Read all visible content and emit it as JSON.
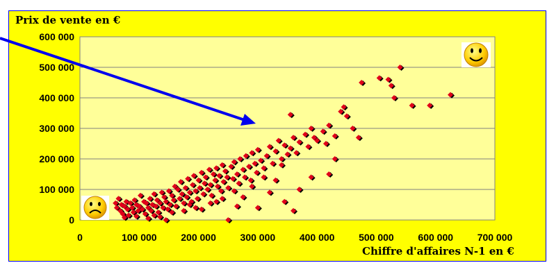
{
  "chart_data": {
    "type": "scatter",
    "title": "",
    "ylabel": "Prix de vente en €",
    "xlabel": "Chiffre d'affaires N-1 en €",
    "xlim": [
      0,
      700000
    ],
    "ylim": [
      0,
      600000
    ],
    "x_ticks": [
      "0",
      "100 000",
      "200 000",
      "300 000",
      "400 000",
      "500 000",
      "600 000",
      "700 000"
    ],
    "y_ticks": [
      "0",
      "100 000",
      "200 000",
      "300 000",
      "400 000",
      "500 000",
      "600 000"
    ],
    "grid": "horizontal",
    "plot_background": "#ffff99",
    "frame_background": "#ffff00",
    "marker_color": "#e0001a",
    "arrow_color": "#0000ee",
    "icons": [
      "sad-face-icon",
      "happy-face-icon"
    ],
    "points": [
      [
        60000,
        55000
      ],
      [
        62000,
        40000
      ],
      [
        65000,
        70000
      ],
      [
        68000,
        30000
      ],
      [
        70000,
        50000
      ],
      [
        72000,
        20000
      ],
      [
        75000,
        45000
      ],
      [
        78000,
        60000
      ],
      [
        80000,
        35000
      ],
      [
        82000,
        15000
      ],
      [
        85000,
        55000
      ],
      [
        88000,
        40000
      ],
      [
        90000,
        25000
      ],
      [
        92000,
        65000
      ],
      [
        95000,
        50000
      ],
      [
        98000,
        30000
      ],
      [
        100000,
        45000
      ],
      [
        102000,
        80000
      ],
      [
        105000,
        35000
      ],
      [
        108000,
        60000
      ],
      [
        110000,
        20000
      ],
      [
        112000,
        55000
      ],
      [
        115000,
        40000
      ],
      [
        118000,
        70000
      ],
      [
        120000,
        30000
      ],
      [
        122000,
        50000
      ],
      [
        125000,
        85000
      ],
      [
        128000,
        45000
      ],
      [
        130000,
        65000
      ],
      [
        132000,
        25000
      ],
      [
        135000,
        55000
      ],
      [
        138000,
        90000
      ],
      [
        140000,
        40000
      ],
      [
        142000,
        75000
      ],
      [
        145000,
        60000
      ],
      [
        148000,
        35000
      ],
      [
        150000,
        95000
      ],
      [
        152000,
        50000
      ],
      [
        155000,
        80000
      ],
      [
        158000,
        65000
      ],
      [
        160000,
        110000
      ],
      [
        162000,
        45000
      ],
      [
        165000,
        100000
      ],
      [
        168000,
        70000
      ],
      [
        170000,
        125000
      ],
      [
        172000,
        85000
      ],
      [
        175000,
        55000
      ],
      [
        178000,
        105000
      ],
      [
        180000,
        75000
      ],
      [
        182000,
        135000
      ],
      [
        185000,
        90000
      ],
      [
        188000,
        60000
      ],
      [
        190000,
        115000
      ],
      [
        192000,
        145000
      ],
      [
        195000,
        95000
      ],
      [
        198000,
        70000
      ],
      [
        200000,
        130000
      ],
      [
        202000,
        105000
      ],
      [
        205000,
        155000
      ],
      [
        208000,
        85000
      ],
      [
        210000,
        120000
      ],
      [
        212000,
        140000
      ],
      [
        215000,
        100000
      ],
      [
        218000,
        165000
      ],
      [
        220000,
        115000
      ],
      [
        222000,
        80000
      ],
      [
        225000,
        150000
      ],
      [
        228000,
        130000
      ],
      [
        230000,
        170000
      ],
      [
        232000,
        110000
      ],
      [
        235000,
        145000
      ],
      [
        238000,
        95000
      ],
      [
        240000,
        180000
      ],
      [
        242000,
        125000
      ],
      [
        245000,
        160000
      ],
      [
        248000,
        140000
      ],
      [
        250000,
        105000
      ],
      [
        255000,
        175000
      ],
      [
        258000,
        135000
      ],
      [
        260000,
        190000
      ],
      [
        265000,
        150000
      ],
      [
        268000,
        120000
      ],
      [
        270000,
        200000
      ],
      [
        275000,
        165000
      ],
      [
        278000,
        140000
      ],
      [
        280000,
        210000
      ],
      [
        285000,
        175000
      ],
      [
        288000,
        130000
      ],
      [
        290000,
        220000
      ],
      [
        295000,
        185000
      ],
      [
        298000,
        155000
      ],
      [
        300000,
        230000
      ],
      [
        305000,
        195000
      ],
      [
        310000,
        170000
      ],
      [
        315000,
        210000
      ],
      [
        320000,
        240000
      ],
      [
        325000,
        185000
      ],
      [
        330000,
        225000
      ],
      [
        335000,
        260000
      ],
      [
        340000,
        200000
      ],
      [
        345000,
        245000
      ],
      [
        350000,
        215000
      ],
      [
        355000,
        235000
      ],
      [
        360000,
        270000
      ],
      [
        365000,
        220000
      ],
      [
        370000,
        255000
      ],
      [
        380000,
        280000
      ],
      [
        385000,
        240000
      ],
      [
        390000,
        300000
      ],
      [
        395000,
        270000
      ],
      [
        400000,
        260000
      ],
      [
        410000,
        290000
      ],
      [
        415000,
        250000
      ],
      [
        420000,
        310000
      ],
      [
        430000,
        275000
      ],
      [
        440000,
        355000
      ],
      [
        445000,
        370000
      ],
      [
        450000,
        340000
      ],
      [
        460000,
        300000
      ],
      [
        475000,
        450000
      ],
      [
        505000,
        465000
      ],
      [
        520000,
        460000
      ],
      [
        525000,
        440000
      ],
      [
        530000,
        400000
      ],
      [
        540000,
        500000
      ],
      [
        560000,
        375000
      ],
      [
        590000,
        375000
      ],
      [
        625000,
        410000
      ],
      [
        355000,
        345000
      ],
      [
        370000,
        100000
      ],
      [
        360000,
        30000
      ],
      [
        390000,
        140000
      ],
      [
        420000,
        150000
      ],
      [
        430000,
        200000
      ],
      [
        470000,
        270000
      ],
      [
        345000,
        60000
      ],
      [
        320000,
        90000
      ],
      [
        300000,
        40000
      ],
      [
        250000,
        0
      ],
      [
        145000,
        0
      ],
      [
        185000,
        50000
      ],
      [
        230000,
        60000
      ],
      [
        275000,
        75000
      ],
      [
        330000,
        130000
      ],
      [
        265000,
        45000
      ],
      [
        205000,
        35000
      ],
      [
        125000,
        15000
      ],
      [
        290000,
        110000
      ],
      [
        310000,
        140000
      ],
      [
        340000,
        180000
      ],
      [
        260000,
        95000
      ],
      [
        240000,
        70000
      ],
      [
        220000,
        55000
      ],
      [
        195000,
        40000
      ],
      [
        175000,
        30000
      ],
      [
        155000,
        25000
      ],
      [
        135000,
        10000
      ],
      [
        115000,
        5000
      ],
      [
        95000,
        12000
      ],
      [
        75000,
        8000
      ]
    ]
  }
}
